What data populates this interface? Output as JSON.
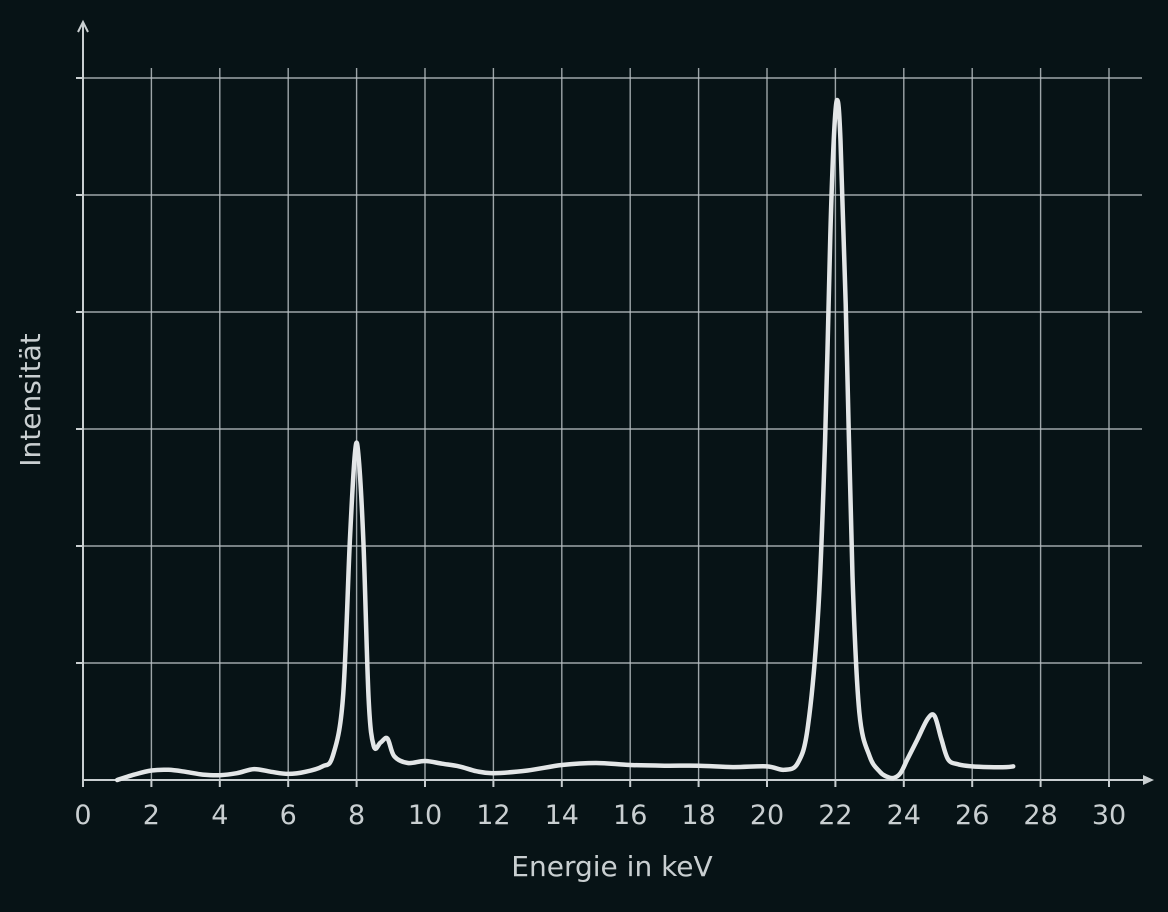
{
  "chart_data": {
    "type": "line",
    "xlabel": "Energie in keV",
    "ylabel": "Intensität",
    "xlim": [
      0,
      31
    ],
    "ylim": [
      0,
      100
    ],
    "x_ticks": [
      "0",
      "2",
      "4",
      "6",
      "8",
      "10",
      "12",
      "14",
      "16",
      "18",
      "20",
      "22",
      "24",
      "26",
      "28",
      "30"
    ],
    "y_ticks_labeled": false,
    "grid": true,
    "colors": {
      "background": "#071316",
      "line": "#e3e6e7",
      "grid": "#b9c0c3"
    },
    "series": [
      {
        "x": [
          1.0,
          1.5,
          2.0,
          2.5,
          3.0,
          3.5,
          4.0,
          4.5,
          5.0,
          5.5,
          6.0,
          6.5,
          7.0,
          7.3,
          7.6,
          7.8,
          7.95,
          8.05,
          8.2,
          8.35,
          8.5,
          8.7,
          8.9,
          9.1,
          9.5,
          10.0,
          10.5,
          11.0,
          11.5,
          12.0,
          13.0,
          14.0,
          15.0,
          16.0,
          17.0,
          18.0,
          19.0,
          20.0,
          20.5,
          20.9,
          21.2,
          21.5,
          21.7,
          21.85,
          21.95,
          22.05,
          22.15,
          22.3,
          22.5,
          22.7,
          23.0,
          23.3,
          23.5,
          23.7,
          23.9,
          24.1,
          24.4,
          24.7,
          24.9,
          25.1,
          25.3,
          25.6,
          26.0,
          26.5,
          27.0,
          27.2
        ],
        "y": [
          0,
          0.8,
          1.4,
          1.5,
          1.2,
          0.8,
          0.7,
          1.0,
          1.6,
          1.2,
          0.9,
          1.2,
          2.0,
          3.5,
          12,
          35,
          48,
          48,
          35,
          12,
          5,
          5.5,
          6.1,
          3.5,
          2.5,
          2.8,
          2.4,
          2.0,
          1.3,
          1.0,
          1.4,
          2.2,
          2.5,
          2.2,
          2.1,
          2.1,
          1.9,
          2.0,
          1.5,
          2.5,
          8,
          25,
          50,
          80,
          94,
          100,
          94,
          70,
          30,
          10,
          3.5,
          1.2,
          0.5,
          0.3,
          1.0,
          3.0,
          6.0,
          9.0,
          9.4,
          6.0,
          3.0,
          2.3,
          2.0,
          1.9,
          1.9,
          2.0
        ]
      }
    ]
  }
}
